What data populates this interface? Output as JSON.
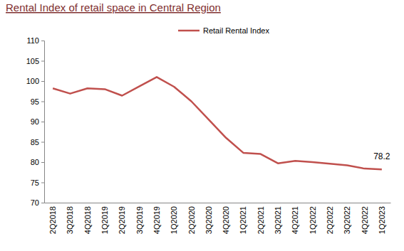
{
  "chart_data": {
    "type": "line",
    "title": "Rental Index of retail space in Central Region",
    "categories": [
      "2Q2018",
      "3Q2018",
      "4Q2018",
      "1Q2019",
      "2Q2019",
      "3Q2019",
      "4Q2019",
      "1Q2020",
      "2Q2020",
      "3Q2020",
      "4Q2020",
      "1Q2021",
      "2Q2021",
      "3Q2021",
      "4Q2021",
      "1Q2022",
      "2Q2022",
      "3Q2022",
      "4Q2022",
      "1Q2023"
    ],
    "series": [
      {
        "name": "Retail Rental Index",
        "color": "#c0504d",
        "values": [
          98.2,
          96.9,
          98.2,
          98.0,
          96.4,
          98.7,
          101.0,
          98.6,
          95.0,
          90.5,
          86.0,
          82.3,
          82.0,
          79.7,
          80.3,
          80.0,
          79.6,
          79.2,
          78.4,
          78.2
        ],
        "value_labels": [
          null,
          null,
          null,
          null,
          null,
          null,
          null,
          null,
          null,
          null,
          null,
          null,
          null,
          null,
          null,
          null,
          null,
          null,
          null,
          "78.2"
        ]
      }
    ],
    "ylim": [
      70,
      110
    ],
    "yticks": [
      70,
      75,
      80,
      85,
      90,
      95,
      100,
      105,
      110
    ],
    "grid": false,
    "legend": "top",
    "data_labels": true
  }
}
